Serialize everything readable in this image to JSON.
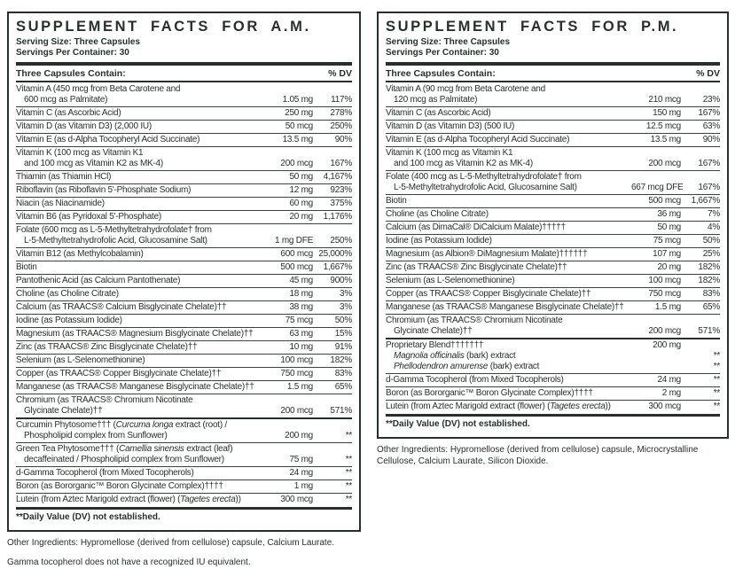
{
  "page": {
    "background": "#ffffff",
    "text_color": "#26312b",
    "rule_color": "#26312b"
  },
  "panels": [
    {
      "id": "am",
      "title": "SUPPLEMENT FACTS FOR A.M.",
      "serving_size": "Serving Size: Three Capsules",
      "servings_per_container": "Servings Per Container: 30",
      "contain_header": "Three Capsules Contain:",
      "dv_header": "% DV",
      "rows": [
        {
          "label_lines": [
            "Vitamin A (450 mcg from Beta Carotene and",
            "600 mcg as Palmitate)"
          ],
          "amount": "1.05 mg",
          "dv": "117%"
        },
        {
          "label_lines": [
            "Vitamin C (as Ascorbic Acid)"
          ],
          "amount": "250 mg",
          "dv": "278%"
        },
        {
          "label_lines": [
            "Vitamin D (as Vitamin D3) (2,000 IU)"
          ],
          "amount": "50 mcg",
          "dv": "250%"
        },
        {
          "label_lines": [
            "Vitamin E (as d-Alpha Tocopheryl Acid Succinate)"
          ],
          "amount": "13.5 mg",
          "dv": "90%"
        },
        {
          "label_lines": [
            "Vitamin K (100 mcg as Vitamin K1",
            "and 100 mcg as Vitamin K2 as MK-4)"
          ],
          "amount": "200 mcg",
          "dv": "167%"
        },
        {
          "label_lines": [
            "Thiamin (as Thiamin HCl)"
          ],
          "amount": "50 mg",
          "dv": "4,167%"
        },
        {
          "label_lines": [
            "Riboflavin (as Riboflavin 5'-Phosphate Sodium)"
          ],
          "amount": "12 mg",
          "dv": "923%"
        },
        {
          "label_lines": [
            "Niacin (as Niacinamide)"
          ],
          "amount": "60 mg",
          "dv": "375%"
        },
        {
          "label_lines": [
            "Vitamin B6 (as Pyridoxal 5'-Phosphate)"
          ],
          "amount": "20 mg",
          "dv": "1,176%"
        },
        {
          "label_lines": [
            "Folate (600 mcg as L-5-Methyltetrahydrofolate† from",
            "L-5-Methyltetrahydrofolic Acid, Glucosamine Salt)"
          ],
          "amount": "1 mg DFE",
          "dv": "250%"
        },
        {
          "label_lines": [
            "Vitamin B12 (as Methylcobalamin)"
          ],
          "amount": "600 mcg",
          "dv": "25,000%"
        },
        {
          "label_lines": [
            "Biotin"
          ],
          "amount": "500 mcg",
          "dv": "1,667%"
        },
        {
          "label_lines": [
            "Pantothenic Acid (as Calcium Pantothenate)"
          ],
          "amount": "45 mg",
          "dv": "900%"
        },
        {
          "label_lines": [
            "Choline (as Choline Citrate)"
          ],
          "amount": "18 mg",
          "dv": "3%"
        },
        {
          "label_lines": [
            "Calcium (as TRAACS® Calcium Bisglycinate Chelate)††"
          ],
          "amount": "38 mg",
          "dv": "3%"
        },
        {
          "label_lines": [
            "Iodine (as Potassium Iodide)"
          ],
          "amount": "75 mcg",
          "dv": "50%"
        },
        {
          "label_lines": [
            "Magnesium (as TRAACS® Magnesium Bisglycinate Chelate)††"
          ],
          "amount": "63 mg",
          "dv": "15%"
        },
        {
          "label_lines": [
            "Zinc (as TRAACS® Zinc Bisglycinate Chelate)††"
          ],
          "amount": "10 mg",
          "dv": "91%"
        },
        {
          "label_lines": [
            "Selenium (as L-Selenomethionine)"
          ],
          "amount": "100 mcg",
          "dv": "182%"
        },
        {
          "label_lines": [
            "Copper (as TRAACS® Copper Bisglycinate Chelate)††"
          ],
          "amount": "750 mcg",
          "dv": "83%"
        },
        {
          "label_lines": [
            "Manganese (as TRAACS® Manganese Bisglycinate Chelate)††"
          ],
          "amount": "1.5 mg",
          "dv": "65%"
        },
        {
          "label_lines": [
            "Chromium (as TRAACS® Chromium Nicotinate",
            "Glycinate Chelate)††"
          ],
          "amount": "200 mcg",
          "dv": "571%"
        },
        {
          "thick_top": true,
          "label_lines": [
            "Curcumin Phytosome††† (*Curcuma longa* extract (root) /",
            "Phospholipid complex from Sunflower)"
          ],
          "amount": "200 mg",
          "dv": "**"
        },
        {
          "label_lines": [
            "Green Tea Phytosome††† (*Camellia sinensis* extract (leaf)",
            "decaffeinated / Phospholipid complex from Sunflower)"
          ],
          "amount": "75 mg",
          "dv": "**"
        },
        {
          "label_lines": [
            "d-Gamma Tocopherol (from Mixed Tocopherols)"
          ],
          "amount": "24 mg",
          "dv": "**"
        },
        {
          "label_lines": [
            "Boron (as Bororganic™ Boron Glycinate Complex)††††"
          ],
          "amount": "1 mg",
          "dv": "**"
        },
        {
          "label_lines": [
            "Lutein (from Aztec Marigold extract (flower) (*Tagetes erecta*))"
          ],
          "amount": "300 mcg",
          "dv": "**"
        }
      ],
      "footnote": "**Daily Value (DV) not established.",
      "below_notes": [
        "Other Ingredients: Hypromellose (derived from cellulose) capsule, Calcium Laurate.",
        "Gamma tocopherol does not have a recognized IU equivalent."
      ]
    },
    {
      "id": "pm",
      "title": "SUPPLEMENT FACTS FOR P.M.",
      "serving_size": "Serving Size: Three Capsules",
      "servings_per_container": "Servings Per Container: 30",
      "contain_header": "Three Capsules Contain:",
      "dv_header": "% DV",
      "rows": [
        {
          "label_lines": [
            "Vitamin A (90 mcg from Beta Carotene and",
            "120 mcg as Palmitate)"
          ],
          "amount": "210 mcg",
          "dv": "23%"
        },
        {
          "label_lines": [
            "Vitamin C (as Ascorbic Acid)"
          ],
          "amount": "150 mg",
          "dv": "167%"
        },
        {
          "label_lines": [
            "Vitamin D (as Vitamin D3) (500 IU)"
          ],
          "amount": "12.5 mcg",
          "dv": "63%"
        },
        {
          "label_lines": [
            "Vitamin E (as d-Alpha Tocopheryl Acid Succinate)"
          ],
          "amount": "13.5 mg",
          "dv": "90%"
        },
        {
          "label_lines": [
            "Vitamin K (100 mcg as Vitamin K1",
            "and 100 mcg as Vitamin K2 as MK-4)"
          ],
          "amount": "200 mcg",
          "dv": "167%"
        },
        {
          "label_lines": [
            "Folate (400 mcg as L-5-Methyltetrahydrofolate† from",
            "L-5-Methyltetrahydrofolic Acid, Glucosamine Salt)"
          ],
          "amount": "667 mcg DFE",
          "dv": "167%"
        },
        {
          "label_lines": [
            "Biotin"
          ],
          "amount": "500 mcg",
          "dv": "1,667%"
        },
        {
          "label_lines": [
            "Choline (as Choline Citrate)"
          ],
          "amount": "36 mg",
          "dv": "7%"
        },
        {
          "label_lines": [
            "Calcium (as DimaCal® DiCalcium Malate)†††††"
          ],
          "amount": "50 mg",
          "dv": "4%"
        },
        {
          "label_lines": [
            "Iodine (as Potassium Iodide)"
          ],
          "amount": "75 mcg",
          "dv": "50%"
        },
        {
          "label_lines": [
            "Magnesium (as Albion® DiMagnesium Malate)††††††"
          ],
          "amount": "107 mg",
          "dv": "25%"
        },
        {
          "label_lines": [
            "Zinc (as TRAACS® Zinc Bisglycinate Chelate)††"
          ],
          "amount": "20 mg",
          "dv": "182%"
        },
        {
          "label_lines": [
            "Selenium (as L-Selenomethionine)"
          ],
          "amount": "100 mcg",
          "dv": "182%"
        },
        {
          "label_lines": [
            "Copper (as TRAACS® Copper Bisglycinate Chelate)††"
          ],
          "amount": "750 mcg",
          "dv": "83%"
        },
        {
          "label_lines": [
            "Manganese (as TRAACS® Manganese Bisglycinate Chelate)††"
          ],
          "amount": "1.5 mg",
          "dv": "65%"
        },
        {
          "label_lines": [
            "Chromium (as TRAACS® Chromium Nicotinate",
            "Glycinate Chelate)††"
          ],
          "amount": "200 mcg",
          "dv": "571%"
        },
        {
          "thick_top": true,
          "label_lines": [
            "Proprietary Blend†††††††"
          ],
          "amount": "200 mg",
          "dv": "",
          "sub_rows": [
            {
              "label": "*Magnolia officinalis* (bark) extract",
              "dv": "**"
            },
            {
              "label": "*Phellodendron amurense* (bark) extract",
              "dv": "**"
            }
          ]
        },
        {
          "label_lines": [
            "d-Gamma Tocopherol (from Mixed Tocopherols)"
          ],
          "amount": "24 mg",
          "dv": "**"
        },
        {
          "label_lines": [
            "Boron (as Bororganic™ Boron Glycinate Complex)††††"
          ],
          "amount": "2 mg",
          "dv": "**"
        },
        {
          "label_lines": [
            "Lutein (from Aztec Marigold extract (flower) (*Tagetes erecta*))"
          ],
          "amount": "300 mcg",
          "dv": "**"
        }
      ],
      "footnote": "**Daily Value (DV) not established.",
      "below_notes": [
        "Other Ingredients: Hypromellose (derived from cellulose) capsule, Microcrystalline Cellulose, Calcium Laurate, Silicon Dioxide."
      ]
    }
  ]
}
